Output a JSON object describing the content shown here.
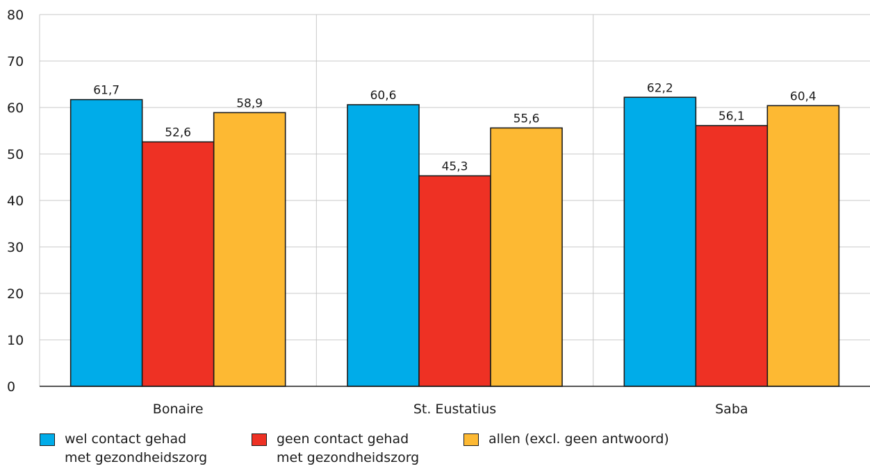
{
  "chart_data": {
    "type": "bar",
    "title": "",
    "xlabel": "",
    "ylabel": "",
    "ylim": [
      0,
      80
    ],
    "yticks": [
      "0",
      "10",
      "20",
      "30",
      "40",
      "50",
      "60",
      "70",
      "80"
    ],
    "categories": [
      "Bonaire",
      "St. Eustatius",
      "Saba"
    ],
    "series": [
      {
        "name": "wel contact gehad met gezondheidszorg",
        "color": "#00ace9",
        "values": [
          61.7,
          60.6,
          62.2
        ],
        "labels": [
          "61,7",
          "60,6",
          "62,2"
        ]
      },
      {
        "name": "geen contact gehad met gezondheidszorg",
        "color": "#ee3124",
        "values": [
          52.6,
          45.3,
          56.1
        ],
        "labels": [
          "52,6",
          "45,3",
          "56,1"
        ]
      },
      {
        "name": "allen (excl. geen antwoord)",
        "color": "#fdb933",
        "values": [
          58.9,
          55.6,
          60.4
        ],
        "labels": [
          "58,9",
          "55,6",
          "60,4"
        ]
      }
    ],
    "grid": true,
    "legend_position": "bottom"
  },
  "legend": [
    {
      "line1": "wel contact gehad",
      "line2": "met gezondheidszorg",
      "color": "#00ace9"
    },
    {
      "line1": "geen contact gehad",
      "line2": "met gezondheidszorg",
      "color": "#ee3124"
    },
    {
      "line1": "allen (excl. geen antwoord)",
      "line2": "",
      "color": "#fdb933"
    }
  ]
}
